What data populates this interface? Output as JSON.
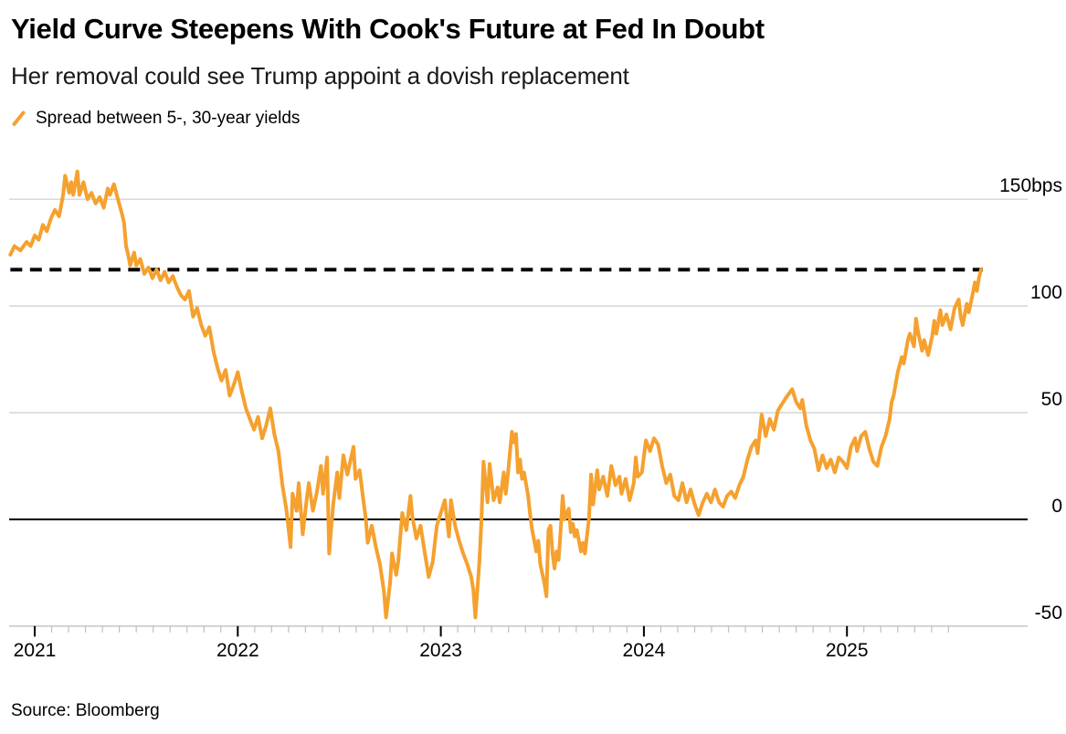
{
  "header": {
    "title": "Yield Curve Steepens With Cook's Future at Fed In Doubt",
    "subtitle": "Her removal could see Trump appoint a dovish replacement"
  },
  "legend": {
    "label": "Spread between 5-, 30-year yields"
  },
  "source": "Source: Bloomberg",
  "colors": {
    "series_orange": "#F5A12F",
    "grid": "#CCCCCC",
    "axis_line": "#C9C9C9",
    "minor_tick": "#BFBFBF",
    "major_tick": "#000000",
    "zero_line": "#000000",
    "reference_line": "#000000",
    "text": "#000000"
  },
  "chart_data": {
    "type": "line",
    "title": "Spread between 5-, 30-year yields",
    "unit": "bps",
    "grid": "horizontal",
    "legend_position": "top-left",
    "x_range": [
      2020.88,
      2025.9
    ],
    "y_range": [
      -63,
      172
    ],
    "x_ticks_major": [
      2021,
      2022,
      2023,
      2024,
      2025
    ],
    "x_tick_labels": [
      "2021",
      "2022",
      "2023",
      "2024",
      "2025"
    ],
    "x_minor_tick_months": true,
    "x_minor_start": 2020.9167,
    "x_minor_end": 2025.5833,
    "y_ticks": [
      {
        "value": 150,
        "label": "150bps"
      },
      {
        "value": 100,
        "label": "100"
      },
      {
        "value": 50,
        "label": "50"
      },
      {
        "value": 0,
        "label": "0"
      },
      {
        "value": -50,
        "label": "-50"
      }
    ],
    "zero_line_value": 0,
    "reference_line": {
      "value": 117,
      "style": "dashed"
    },
    "series": [
      {
        "name": "Spread between 5-, 30-year yields",
        "color": "#F5A12F",
        "points": [
          [
            2020.88,
            124
          ],
          [
            2020.9,
            128
          ],
          [
            2020.93,
            126
          ],
          [
            2020.96,
            130
          ],
          [
            2020.98,
            128
          ],
          [
            2021.0,
            133
          ],
          [
            2021.02,
            131
          ],
          [
            2021.04,
            138
          ],
          [
            2021.06,
            135
          ],
          [
            2021.08,
            141
          ],
          [
            2021.1,
            145
          ],
          [
            2021.12,
            142
          ],
          [
            2021.14,
            152
          ],
          [
            2021.15,
            161
          ],
          [
            2021.17,
            153
          ],
          [
            2021.18,
            158
          ],
          [
            2021.19,
            152
          ],
          [
            2021.21,
            163
          ],
          [
            2021.22,
            152
          ],
          [
            2021.24,
            158
          ],
          [
            2021.26,
            150
          ],
          [
            2021.28,
            153
          ],
          [
            2021.3,
            148
          ],
          [
            2021.32,
            151
          ],
          [
            2021.34,
            146
          ],
          [
            2021.36,
            155
          ],
          [
            2021.37,
            152
          ],
          [
            2021.39,
            157
          ],
          [
            2021.41,
            150
          ],
          [
            2021.43,
            143
          ],
          [
            2021.44,
            139
          ],
          [
            2021.45,
            128
          ],
          [
            2021.46,
            124
          ],
          [
            2021.47,
            119
          ],
          [
            2021.49,
            125
          ],
          [
            2021.5,
            119
          ],
          [
            2021.52,
            122
          ],
          [
            2021.54,
            115
          ],
          [
            2021.56,
            118
          ],
          [
            2021.58,
            113
          ],
          [
            2021.6,
            117
          ],
          [
            2021.62,
            112
          ],
          [
            2021.64,
            116
          ],
          [
            2021.66,
            111
          ],
          [
            2021.68,
            114
          ],
          [
            2021.7,
            109
          ],
          [
            2021.72,
            105
          ],
          [
            2021.74,
            103
          ],
          [
            2021.76,
            107
          ],
          [
            2021.78,
            95
          ],
          [
            2021.8,
            99
          ],
          [
            2021.82,
            91
          ],
          [
            2021.84,
            86
          ],
          [
            2021.86,
            90
          ],
          [
            2021.88,
            79
          ],
          [
            2021.9,
            71
          ],
          [
            2021.92,
            65
          ],
          [
            2021.94,
            70
          ],
          [
            2021.96,
            58
          ],
          [
            2021.98,
            63
          ],
          [
            2022.0,
            69
          ],
          [
            2022.02,
            60
          ],
          [
            2022.04,
            52
          ],
          [
            2022.06,
            47
          ],
          [
            2022.08,
            42
          ],
          [
            2022.1,
            48
          ],
          [
            2022.12,
            38
          ],
          [
            2022.14,
            44
          ],
          [
            2022.16,
            52
          ],
          [
            2022.18,
            40
          ],
          [
            2022.2,
            32
          ],
          [
            2022.22,
            16
          ],
          [
            2022.24,
            4
          ],
          [
            2022.26,
            -13
          ],
          [
            2022.27,
            12
          ],
          [
            2022.29,
            4
          ],
          [
            2022.3,
            17
          ],
          [
            2022.32,
            -7
          ],
          [
            2022.34,
            10
          ],
          [
            2022.35,
            17
          ],
          [
            2022.37,
            4
          ],
          [
            2022.39,
            13
          ],
          [
            2022.41,
            25
          ],
          [
            2022.42,
            12
          ],
          [
            2022.44,
            29
          ],
          [
            2022.45,
            -16
          ],
          [
            2022.47,
            7
          ],
          [
            2022.49,
            22
          ],
          [
            2022.5,
            10
          ],
          [
            2022.52,
            30
          ],
          [
            2022.54,
            21
          ],
          [
            2022.57,
            34
          ],
          [
            2022.58,
            19
          ],
          [
            2022.6,
            23
          ],
          [
            2022.62,
            8
          ],
          [
            2022.63,
            1
          ],
          [
            2022.64,
            -11
          ],
          [
            2022.66,
            -3
          ],
          [
            2022.68,
            -13
          ],
          [
            2022.7,
            -21
          ],
          [
            2022.72,
            -34
          ],
          [
            2022.73,
            -46
          ],
          [
            2022.75,
            -30
          ],
          [
            2022.76,
            -16
          ],
          [
            2022.78,
            -26
          ],
          [
            2022.79,
            -20
          ],
          [
            2022.81,
            3
          ],
          [
            2022.83,
            -5
          ],
          [
            2022.85,
            11
          ],
          [
            2022.86,
            1
          ],
          [
            2022.88,
            -9
          ],
          [
            2022.9,
            -3
          ],
          [
            2022.92,
            -15
          ],
          [
            2022.94,
            -27
          ],
          [
            2022.96,
            -20
          ],
          [
            2022.98,
            -3
          ],
          [
            2023.0,
            3
          ],
          [
            2023.02,
            9
          ],
          [
            2023.04,
            -8
          ],
          [
            2023.05,
            9
          ],
          [
            2023.07,
            -3
          ],
          [
            2023.09,
            -10
          ],
          [
            2023.11,
            -16
          ],
          [
            2023.13,
            -21
          ],
          [
            2023.15,
            -27
          ],
          [
            2023.16,
            -33
          ],
          [
            2023.17,
            -46
          ],
          [
            2023.19,
            -20
          ],
          [
            2023.2,
            0
          ],
          [
            2023.21,
            27
          ],
          [
            2023.23,
            8
          ],
          [
            2023.24,
            26
          ],
          [
            2023.26,
            9
          ],
          [
            2023.28,
            15
          ],
          [
            2023.29,
            8
          ],
          [
            2023.31,
            22
          ],
          [
            2023.32,
            12
          ],
          [
            2023.33,
            21
          ],
          [
            2023.35,
            41
          ],
          [
            2023.36,
            36
          ],
          [
            2023.37,
            40
          ],
          [
            2023.38,
            22
          ],
          [
            2023.39,
            28
          ],
          [
            2023.4,
            19
          ],
          [
            2023.41,
            22
          ],
          [
            2023.43,
            11
          ],
          [
            2023.44,
            2
          ],
          [
            2023.45,
            -5
          ],
          [
            2023.47,
            -15
          ],
          [
            2023.48,
            -10
          ],
          [
            2023.49,
            -21
          ],
          [
            2023.51,
            -30
          ],
          [
            2023.52,
            -36
          ],
          [
            2023.53,
            -5
          ],
          [
            2023.54,
            -3
          ],
          [
            2023.55,
            -16
          ],
          [
            2023.56,
            -23
          ],
          [
            2023.57,
            -15
          ],
          [
            2023.58,
            -19
          ],
          [
            2023.59,
            -5
          ],
          [
            2023.6,
            11
          ],
          [
            2023.61,
            0
          ],
          [
            2023.63,
            5
          ],
          [
            2023.64,
            -6
          ],
          [
            2023.65,
            -2
          ],
          [
            2023.66,
            -8
          ],
          [
            2023.67,
            -5
          ],
          [
            2023.69,
            -15
          ],
          [
            2023.7,
            -11
          ],
          [
            2023.71,
            -16
          ],
          [
            2023.73,
            1
          ],
          [
            2023.74,
            21
          ],
          [
            2023.75,
            7
          ],
          [
            2023.77,
            23
          ],
          [
            2023.78,
            14
          ],
          [
            2023.8,
            20
          ],
          [
            2023.82,
            11
          ],
          [
            2023.84,
            25
          ],
          [
            2023.86,
            16
          ],
          [
            2023.88,
            20
          ],
          [
            2023.89,
            12
          ],
          [
            2023.91,
            19
          ],
          [
            2023.93,
            9
          ],
          [
            2023.95,
            17
          ],
          [
            2023.96,
            29
          ],
          [
            2023.97,
            20
          ],
          [
            2023.99,
            22
          ],
          [
            2024.01,
            37
          ],
          [
            2024.03,
            32
          ],
          [
            2024.05,
            38
          ],
          [
            2024.07,
            35
          ],
          [
            2024.09,
            25
          ],
          [
            2024.11,
            17
          ],
          [
            2024.13,
            21
          ],
          [
            2024.15,
            11
          ],
          [
            2024.17,
            9
          ],
          [
            2024.19,
            17
          ],
          [
            2024.21,
            8
          ],
          [
            2024.23,
            14
          ],
          [
            2024.25,
            7
          ],
          [
            2024.27,
            2
          ],
          [
            2024.29,
            8
          ],
          [
            2024.31,
            12
          ],
          [
            2024.33,
            8
          ],
          [
            2024.35,
            14
          ],
          [
            2024.37,
            8
          ],
          [
            2024.39,
            6
          ],
          [
            2024.41,
            11
          ],
          [
            2024.43,
            13
          ],
          [
            2024.45,
            10
          ],
          [
            2024.47,
            16
          ],
          [
            2024.49,
            20
          ],
          [
            2024.51,
            28
          ],
          [
            2024.53,
            34
          ],
          [
            2024.55,
            37
          ],
          [
            2024.56,
            31
          ],
          [
            2024.58,
            49
          ],
          [
            2024.6,
            39
          ],
          [
            2024.62,
            47
          ],
          [
            2024.64,
            42
          ],
          [
            2024.66,
            51
          ],
          [
            2024.68,
            54
          ],
          [
            2024.7,
            57
          ],
          [
            2024.73,
            61
          ],
          [
            2024.75,
            55
          ],
          [
            2024.77,
            52
          ],
          [
            2024.78,
            56
          ],
          [
            2024.8,
            44
          ],
          [
            2024.82,
            37
          ],
          [
            2024.84,
            33
          ],
          [
            2024.86,
            23
          ],
          [
            2024.88,
            30
          ],
          [
            2024.9,
            24
          ],
          [
            2024.92,
            28
          ],
          [
            2024.94,
            22
          ],
          [
            2024.96,
            29
          ],
          [
            2024.98,
            27
          ],
          [
            2025.0,
            24
          ],
          [
            2025.02,
            34
          ],
          [
            2025.04,
            38
          ],
          [
            2025.05,
            32
          ],
          [
            2025.07,
            39
          ],
          [
            2025.09,
            41
          ],
          [
            2025.11,
            33
          ],
          [
            2025.13,
            27
          ],
          [
            2025.15,
            25
          ],
          [
            2025.17,
            34
          ],
          [
            2025.19,
            39
          ],
          [
            2025.21,
            47
          ],
          [
            2025.22,
            55
          ],
          [
            2025.23,
            58
          ],
          [
            2025.25,
            69
          ],
          [
            2025.27,
            76
          ],
          [
            2025.28,
            73
          ],
          [
            2025.3,
            84
          ],
          [
            2025.31,
            87
          ],
          [
            2025.33,
            81
          ],
          [
            2025.34,
            94
          ],
          [
            2025.35,
            88
          ],
          [
            2025.37,
            79
          ],
          [
            2025.38,
            84
          ],
          [
            2025.4,
            77
          ],
          [
            2025.42,
            86
          ],
          [
            2025.43,
            93
          ],
          [
            2025.44,
            87
          ],
          [
            2025.46,
            98
          ],
          [
            2025.47,
            91
          ],
          [
            2025.49,
            96
          ],
          [
            2025.51,
            89
          ],
          [
            2025.53,
            99
          ],
          [
            2025.55,
            103
          ],
          [
            2025.56,
            95
          ],
          [
            2025.57,
            91
          ],
          [
            2025.59,
            101
          ],
          [
            2025.6,
            97
          ],
          [
            2025.62,
            106
          ],
          [
            2025.63,
            111
          ],
          [
            2025.64,
            107
          ],
          [
            2025.65,
            113
          ],
          [
            2025.66,
            117
          ]
        ]
      }
    ]
  }
}
